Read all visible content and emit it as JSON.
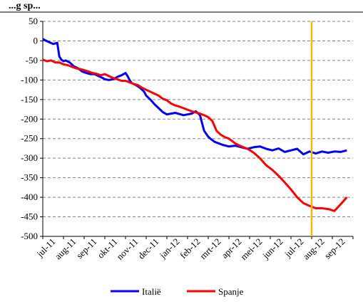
{
  "chart_data": {
    "type": "line",
    "title": "",
    "title_fragment": "...g sp...",
    "xlabel": "",
    "ylabel": "",
    "ylim": [
      -500,
      50
    ],
    "yticks": [
      50,
      0,
      -50,
      -100,
      -150,
      -200,
      -250,
      -300,
      -350,
      -400,
      -450,
      -500
    ],
    "categories": [
      "jul-11",
      "aug-11",
      "sep-11",
      "okt-11",
      "nov-11",
      "dec-11",
      "jan-12",
      "feb-12",
      "mrt-12",
      "apr-12",
      "mei-12",
      "jun-12",
      "jul-12",
      "aug-12",
      "sep-12"
    ],
    "grid": "horizontal-dashed",
    "legend_position": "bottom",
    "marker": {
      "category_index": 13.0,
      "color": "#f5b800"
    },
    "series": [
      {
        "name": "Italië",
        "color": "#0000ff",
        "x": [
          0.0,
          0.1,
          0.3,
          0.5,
          0.7,
          0.8,
          0.9,
          1.0,
          1.1,
          1.3,
          1.5,
          1.7,
          1.9,
          2.1,
          2.3,
          2.5,
          2.7,
          2.9,
          3.0,
          3.2,
          3.4,
          3.6,
          3.8,
          4.0,
          4.1,
          4.2,
          4.3,
          4.5,
          4.7,
          4.9,
          5.0,
          5.2,
          5.4,
          5.6,
          5.8,
          6.0,
          6.2,
          6.4,
          6.6,
          6.8,
          7.0,
          7.2,
          7.4,
          7.6,
          7.8,
          8.0,
          8.1,
          8.3,
          8.5,
          8.7,
          9.0,
          9.3,
          9.6,
          9.9,
          10.2,
          10.5,
          10.8,
          11.1,
          11.4,
          11.7,
          12.0,
          12.3,
          12.6,
          12.9,
          13.2,
          13.5,
          13.8,
          14.1,
          14.4,
          14.7
        ],
        "values": [
          5,
          2,
          -3,
          -8,
          -5,
          -40,
          -48,
          -52,
          -50,
          -55,
          -65,
          -70,
          -78,
          -82,
          -85,
          -85,
          -90,
          -95,
          -98,
          -100,
          -98,
          -92,
          -88,
          -82,
          -90,
          -100,
          -108,
          -113,
          -120,
          -130,
          -140,
          -150,
          -162,
          -172,
          -182,
          -188,
          -186,
          -184,
          -187,
          -190,
          -188,
          -186,
          -180,
          -190,
          -230,
          -245,
          -250,
          -258,
          -262,
          -266,
          -270,
          -268,
          -272,
          -276,
          -272,
          -270,
          -276,
          -280,
          -275,
          -284,
          -280,
          -276,
          -290,
          -283,
          -288,
          -283,
          -286,
          -283,
          -284,
          -280
        ]
      },
      {
        "name": "Spanje",
        "color": "#ff0000",
        "x": [
          0.0,
          0.2,
          0.4,
          0.6,
          0.8,
          1.0,
          1.2,
          1.4,
          1.6,
          1.8,
          2.0,
          2.2,
          2.4,
          2.6,
          2.8,
          3.0,
          3.2,
          3.4,
          3.6,
          3.8,
          4.0,
          4.2,
          4.4,
          4.6,
          4.8,
          5.0,
          5.2,
          5.4,
          5.6,
          5.8,
          6.0,
          6.2,
          6.4,
          6.6,
          6.8,
          7.0,
          7.2,
          7.4,
          7.6,
          7.8,
          8.0,
          8.2,
          8.4,
          8.6,
          8.8,
          9.0,
          9.3,
          9.6,
          9.9,
          10.2,
          10.5,
          10.8,
          11.1,
          11.4,
          11.7,
          12.0,
          12.3,
          12.6,
          12.9,
          13.2,
          13.5,
          13.8,
          14.1,
          14.4,
          14.7
        ],
        "values": [
          -48,
          -52,
          -50,
          -55,
          -55,
          -60,
          -62,
          -66,
          -70,
          -72,
          -75,
          -78,
          -82,
          -84,
          -88,
          -85,
          -90,
          -95,
          -98,
          -102,
          -102,
          -106,
          -110,
          -113,
          -120,
          -125,
          -130,
          -135,
          -140,
          -148,
          -152,
          -160,
          -165,
          -168,
          -172,
          -176,
          -180,
          -183,
          -186,
          -190,
          -195,
          -205,
          -230,
          -240,
          -246,
          -250,
          -262,
          -270,
          -276,
          -286,
          -300,
          -318,
          -330,
          -345,
          -362,
          -380,
          -400,
          -415,
          -422,
          -428,
          -428,
          -430,
          -435,
          -418,
          -400
        ]
      }
    ]
  }
}
